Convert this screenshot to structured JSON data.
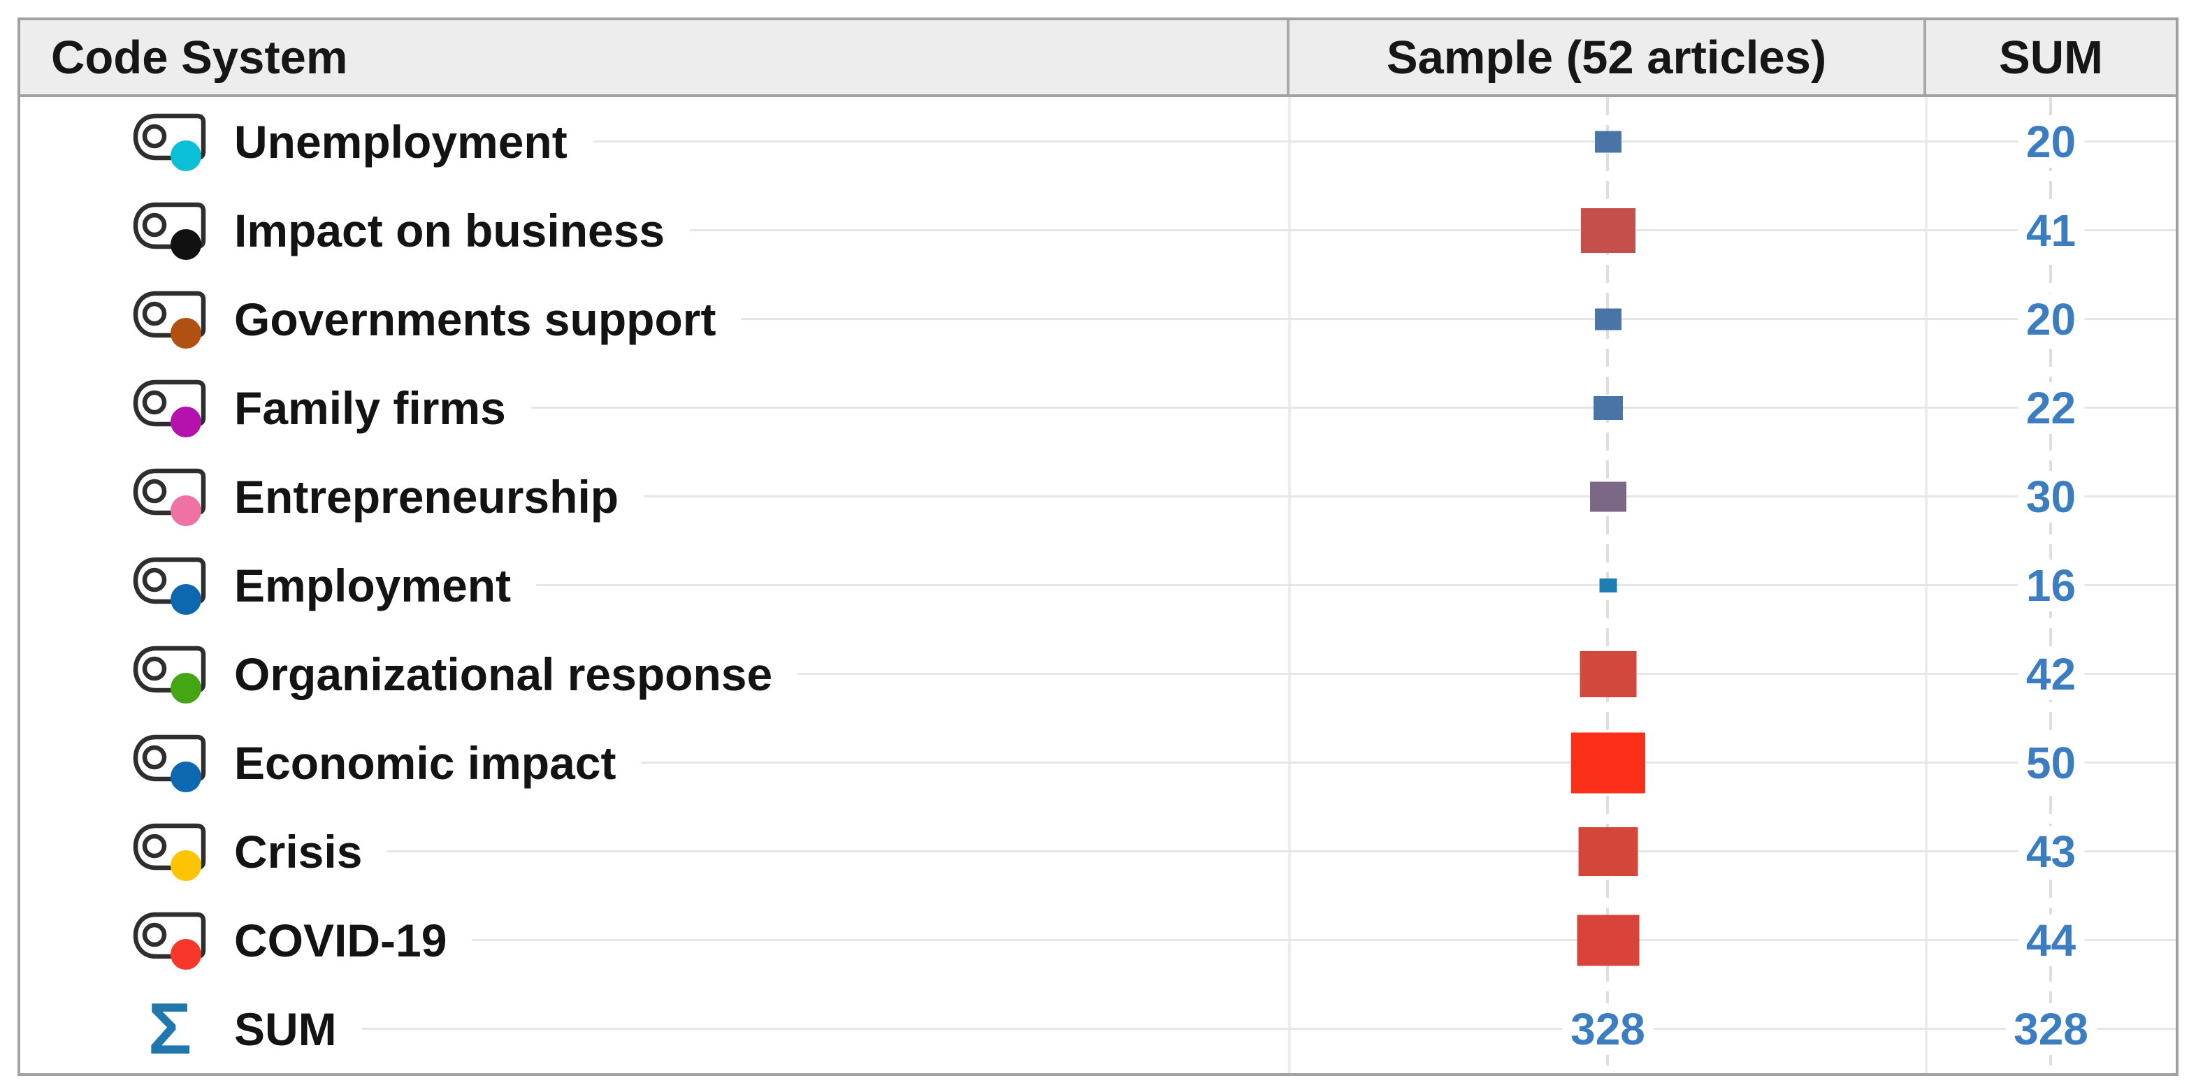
{
  "table": {
    "header": {
      "code_system": "Code System",
      "sample": "Sample (52 articles)",
      "sum": "SUM"
    },
    "rows": [
      {
        "label": "Unemployment",
        "icon": "code-tag",
        "code_color": "#0bbfd6",
        "value": 20,
        "sum": "20",
        "symbol": {
          "w": 38,
          "h": 31,
          "color": "#4a74a6"
        }
      },
      {
        "label": "Impact on business",
        "icon": "code-tag",
        "code_color": "#111111",
        "value": 41,
        "sum": "41",
        "symbol": {
          "w": 78,
          "h": 64,
          "color": "#c54f4b"
        }
      },
      {
        "label": "Governments support",
        "icon": "code-tag",
        "code_color": "#b05012",
        "value": 20,
        "sum": "20",
        "symbol": {
          "w": 38,
          "h": 31,
          "color": "#4a74a6"
        }
      },
      {
        "label": "Family firms",
        "icon": "code-tag",
        "code_color": "#b512ad",
        "value": 22,
        "sum": "22",
        "symbol": {
          "w": 42,
          "h": 34,
          "color": "#4a74a6"
        }
      },
      {
        "label": "Entrepreneurship",
        "icon": "code-tag",
        "code_color": "#ef72a4",
        "value": 30,
        "sum": "30",
        "symbol": {
          "w": 52,
          "h": 43,
          "color": "#7a6886"
        }
      },
      {
        "label": "Employment",
        "icon": "code-tag",
        "code_color": "#0e68b0",
        "value": 16,
        "sum": "16",
        "symbol": {
          "w": 25,
          "h": 20,
          "color": "#1e7db3"
        }
      },
      {
        "label": "Organizational response",
        "icon": "code-tag",
        "code_color": "#44a615",
        "value": 42,
        "sum": "42",
        "symbol": {
          "w": 81,
          "h": 66,
          "color": "#d2483c"
        }
      },
      {
        "label": "Economic impact",
        "icon": "code-tag",
        "code_color": "#0e68b0",
        "value": 50,
        "sum": "50",
        "symbol": {
          "w": 106,
          "h": 87,
          "color": "#fb2e19"
        }
      },
      {
        "label": "Crisis",
        "icon": "code-tag",
        "code_color": "#fdc404",
        "value": 43,
        "sum": "43",
        "symbol": {
          "w": 85,
          "h": 70,
          "color": "#d4453a"
        }
      },
      {
        "label": "COVID-19",
        "icon": "code-tag",
        "code_color": "#f8372a",
        "value": 44,
        "sum": "44",
        "symbol": {
          "w": 89,
          "h": 73,
          "color": "#d8443a"
        }
      },
      {
        "label": "SUM",
        "icon": "sigma",
        "sample_text": "328",
        "sum": "328"
      }
    ]
  },
  "icons": {
    "sigma_glyph": "Σ",
    "code_icon_outline": "#2e2e2e"
  },
  "colors": {
    "header_bg": "#ededed",
    "table_border": "#a2a2a2",
    "row_leader_line": "#e6e6e6",
    "gridline_dash": "#dedede",
    "value_text": "#3b7dc0",
    "sigma_blue": "#2077ad"
  }
}
